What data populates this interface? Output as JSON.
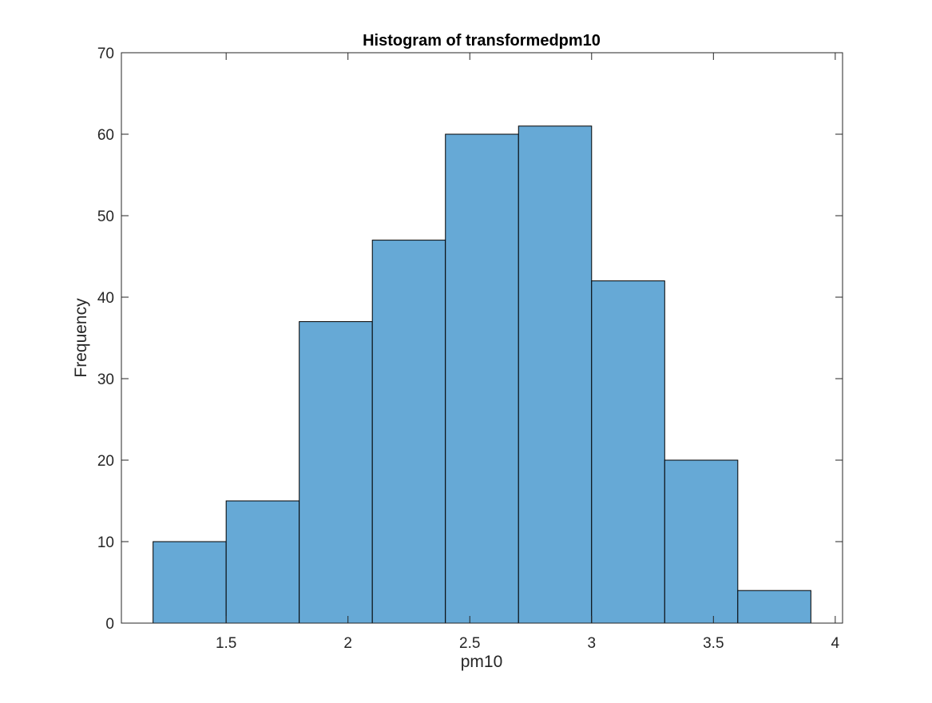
{
  "chart_data": {
    "type": "bar",
    "title": "Histogram of transformedpm10",
    "xlabel": "pm10",
    "ylabel": "Frequency",
    "bin_edges": [
      1.2,
      1.5,
      1.8,
      2.1,
      2.4,
      2.7,
      3.0,
      3.3,
      3.6,
      3.9
    ],
    "values": [
      10,
      15,
      37,
      47,
      60,
      61,
      42,
      20,
      4
    ],
    "xlim": [
      1.07,
      4.03
    ],
    "ylim": [
      0,
      70
    ],
    "xticks": [
      1.5,
      2,
      2.5,
      3,
      3.5,
      4
    ],
    "xtick_labels": [
      "1.5",
      "2",
      "2.5",
      "3",
      "3.5",
      "4"
    ],
    "yticks": [
      0,
      10,
      20,
      30,
      40,
      50,
      60,
      70
    ],
    "ytick_labels": [
      "0",
      "10",
      "20",
      "30",
      "40",
      "50",
      "60",
      "70"
    ],
    "bar_color": "#66A9D6",
    "edge_color": "#000000",
    "grid": false,
    "legend": "none"
  }
}
